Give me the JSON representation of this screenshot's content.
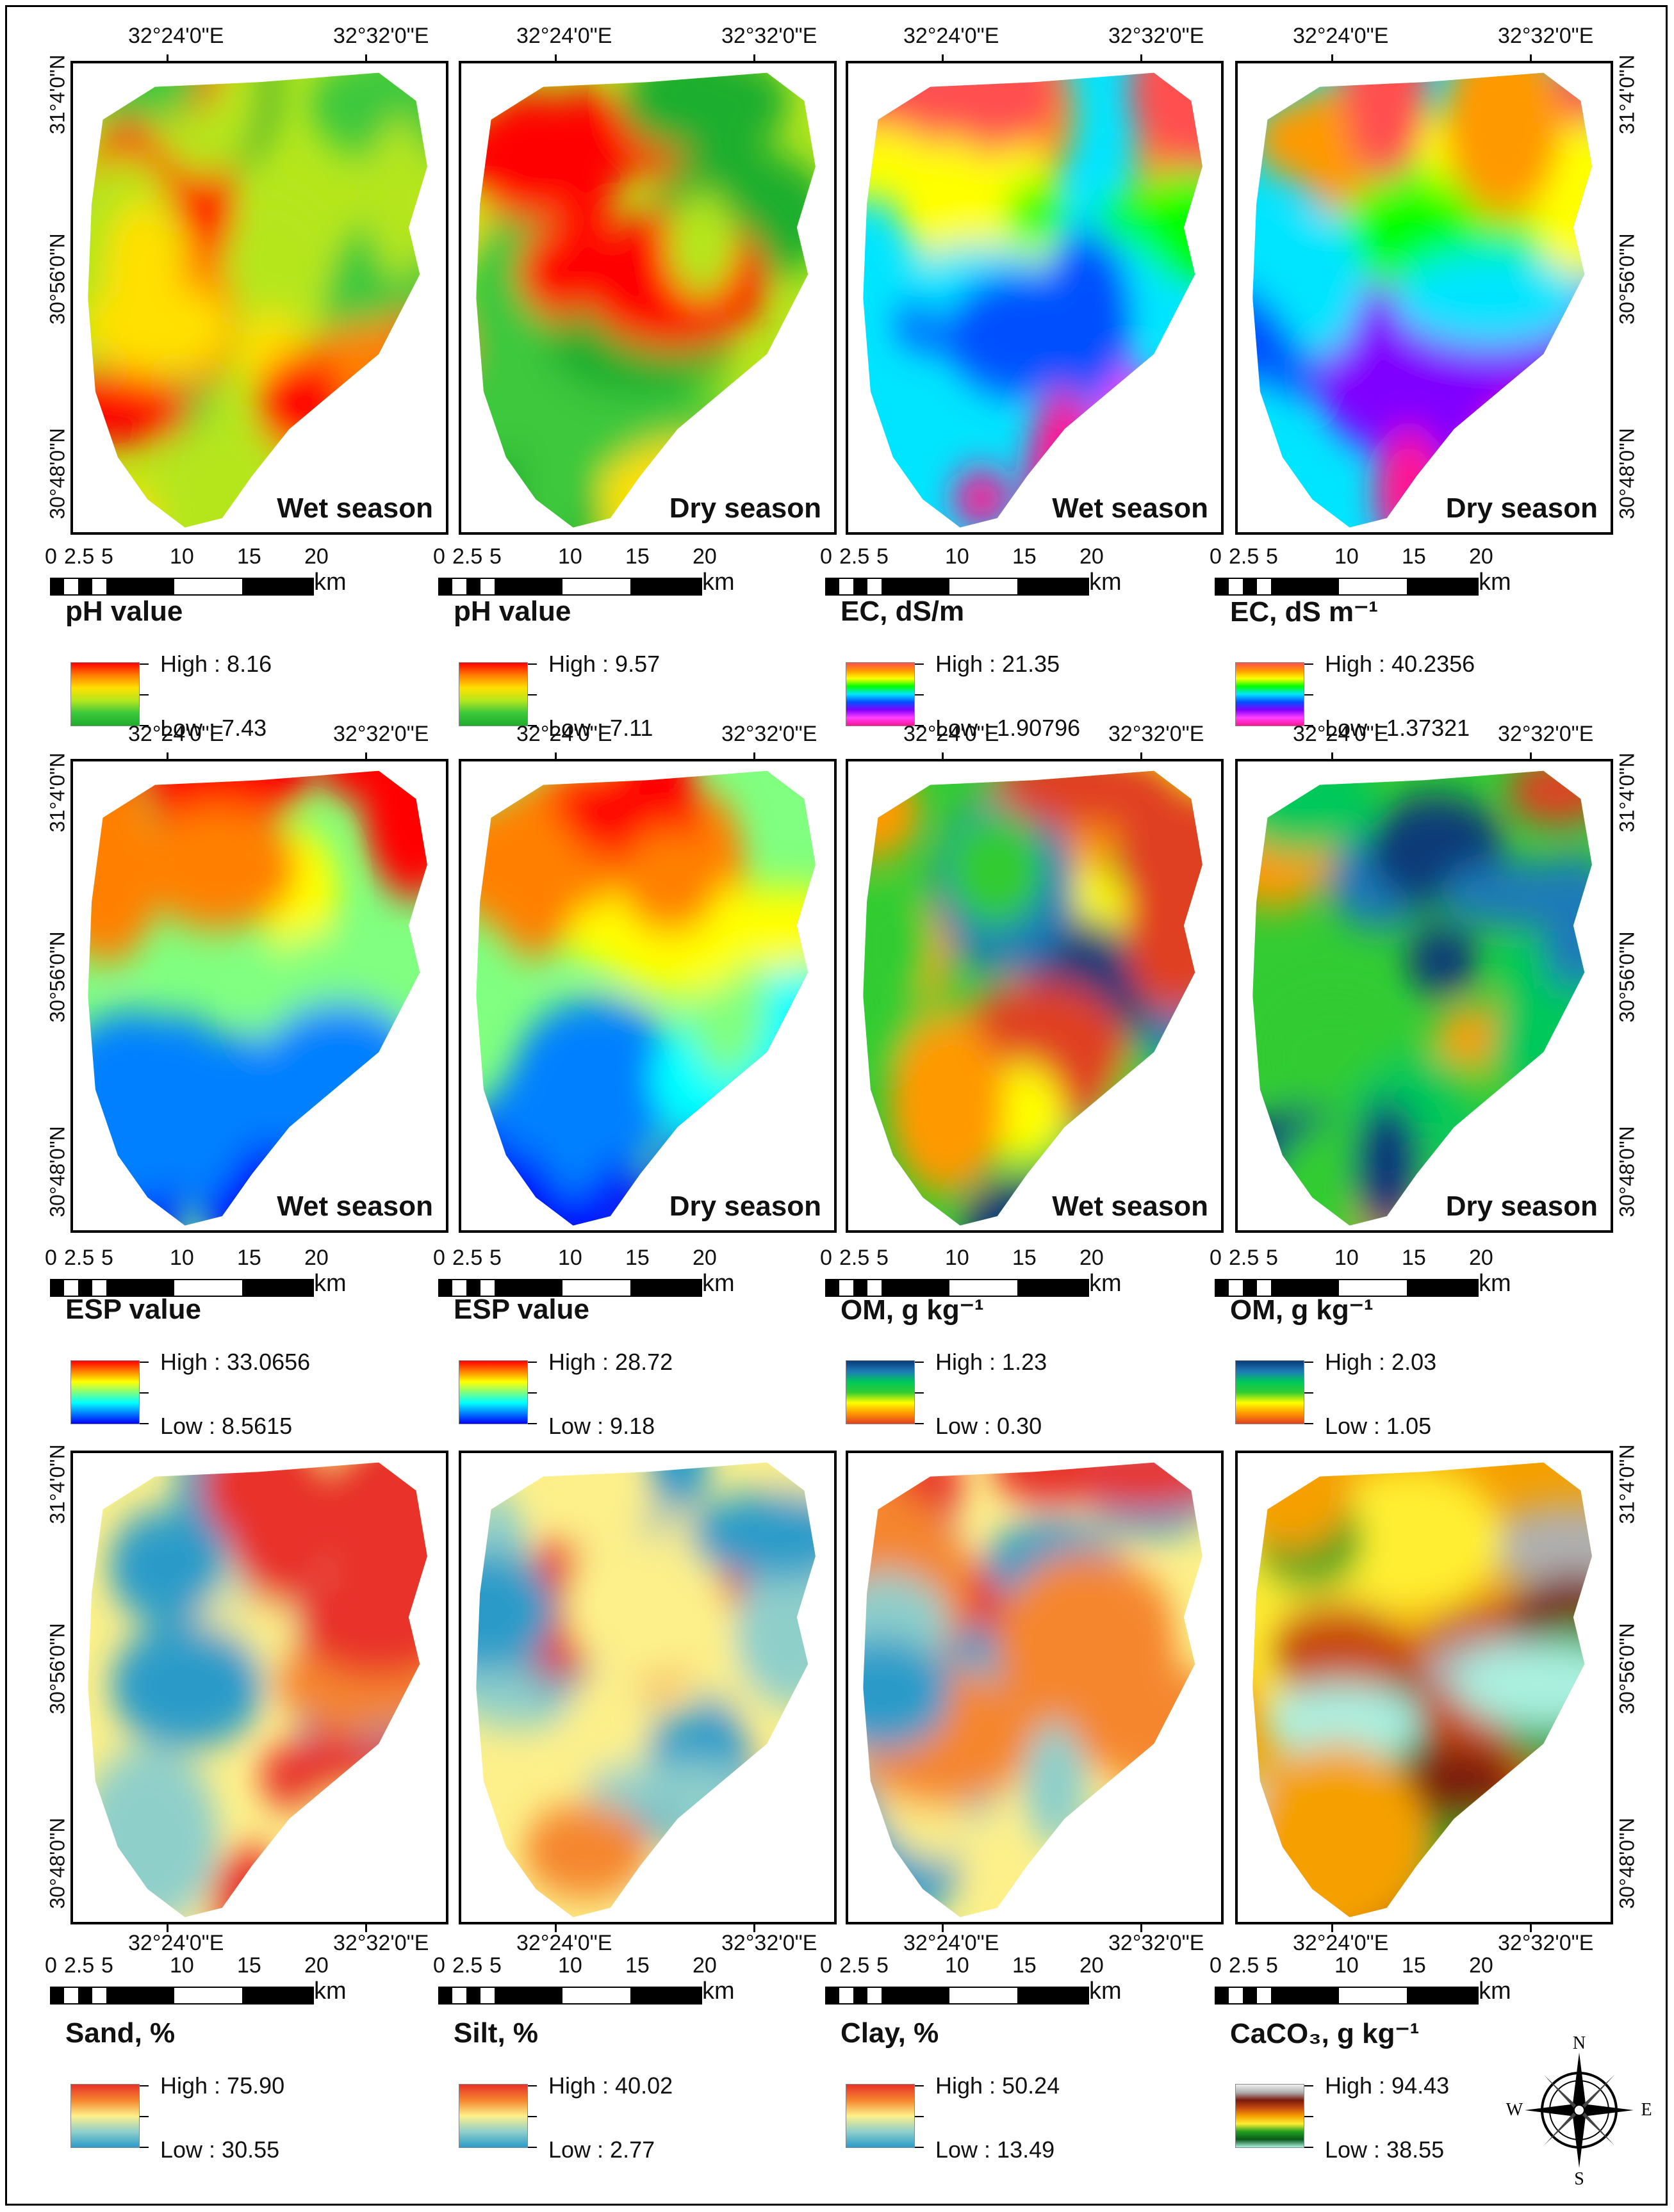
{
  "coordinates": {
    "lon_left": "32°24'0\"E",
    "lon_right": "32°32'0\"E",
    "lat_top": "31°4'0\"N",
    "lat_mid": "30°56'0\"N",
    "lat_bottom": "30°48'0\"N"
  },
  "scale_bar": {
    "unit": "km",
    "ticks": [
      "0",
      "2.5",
      "5",
      "10",
      "15",
      "20"
    ]
  },
  "compass": {
    "n": "N",
    "s": "S",
    "e": "E",
    "w": "W"
  },
  "colors": {
    "page_background": "#ffffff",
    "border": "#000000"
  },
  "panels": [
    {
      "variable": "pH value",
      "season": "Wet season",
      "legend": {
        "high": "High : 8.16",
        "low": "Low : 7.43"
      },
      "palette": "ryg"
    },
    {
      "variable": "pH value",
      "season": "Dry season",
      "legend": {
        "high": "High : 9.57",
        "low": "Low : 7.11"
      },
      "palette": "ryg"
    },
    {
      "variable": "EC, dS/m",
      "season": "Wet season",
      "legend": {
        "high": "High : 21.35",
        "low": "Low : 1.90796"
      },
      "palette": "rainbow"
    },
    {
      "variable": "EC, dS m⁻¹",
      "season": "Dry season",
      "legend": {
        "high": "High : 40.2356",
        "low": "Low : 1.37321"
      },
      "palette": "rainbow"
    },
    {
      "variable": "ESP value",
      "season": "Wet season",
      "legend": {
        "high": "High : 33.0656",
        "low": "Low : 8.5615"
      },
      "palette": "rcb"
    },
    {
      "variable": "ESP value",
      "season": "Dry season",
      "legend": {
        "high": "High : 28.72",
        "low": "Low : 9.18"
      },
      "palette": "rcb"
    },
    {
      "variable": "OM, g kg⁻¹",
      "season": "Wet season",
      "legend": {
        "high": "High : 1.23",
        "low": "Low : 0.30"
      },
      "palette": "bgo"
    },
    {
      "variable": "OM, g kg⁻¹",
      "season": "Dry season",
      "legend": {
        "high": "High : 2.03",
        "low": "Low : 1.05"
      },
      "palette": "bgo"
    },
    {
      "variable": "Sand, %",
      "season": "",
      "legend": {
        "high": "High : 75.90",
        "low": "Low : 30.55"
      },
      "palette": "ryb"
    },
    {
      "variable": "Silt, %",
      "season": "",
      "legend": {
        "high": "High : 40.02",
        "low": "Low : 2.77"
      },
      "palette": "ryb"
    },
    {
      "variable": "Clay, %",
      "season": "",
      "legend": {
        "high": "High : 50.24",
        "low": "Low : 13.49"
      },
      "palette": "ryb"
    },
    {
      "variable": "CaCO₃, g kg⁻¹",
      "season": "",
      "legend": {
        "high": "High : 94.43",
        "low": "Low : 38.55"
      },
      "palette": "caco3"
    }
  ]
}
